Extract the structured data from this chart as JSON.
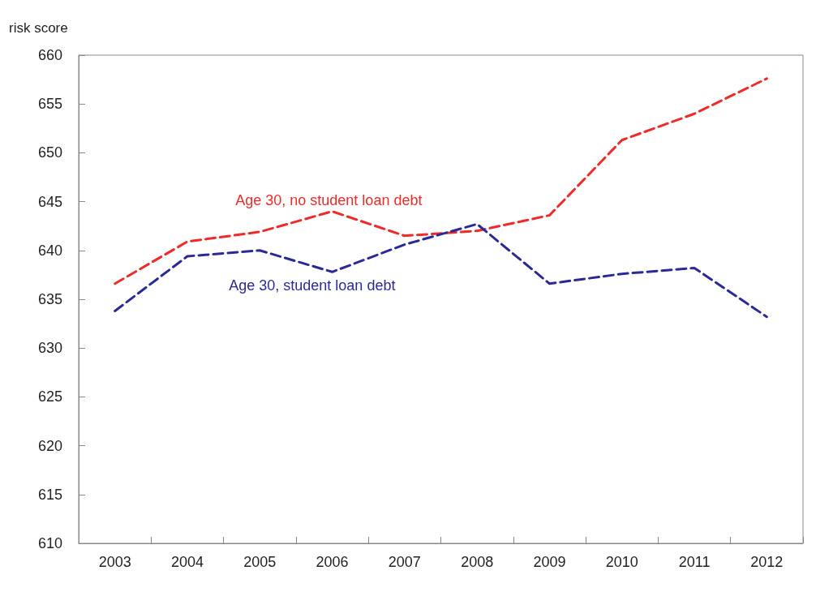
{
  "chart_data": {
    "type": "line",
    "ylabel": "risk score",
    "categories": [
      "2003",
      "2004",
      "2005",
      "2006",
      "2007",
      "2008",
      "2009",
      "2010",
      "2011",
      "2012"
    ],
    "series": [
      {
        "name": "Age 30, no student loan debt",
        "color": "#ee2a2a",
        "values": [
          636.6,
          640.9,
          641.9,
          644,
          641.5,
          642,
          643.6,
          651.3,
          654,
          657.6
        ]
      },
      {
        "name": "Age 30, student loan debt",
        "color": "#2a2a96",
        "values": [
          633.8,
          639.4,
          640,
          637.8,
          640.6,
          642.7,
          636.6,
          637.6,
          638.2,
          633.2
        ]
      }
    ],
    "ylim": [
      610,
      660
    ],
    "yticks": [
      610,
      615,
      620,
      625,
      630,
      635,
      640,
      645,
      650,
      655,
      660
    ],
    "grid": false,
    "legend": false,
    "marker": "none",
    "line_style": "dashed"
  }
}
